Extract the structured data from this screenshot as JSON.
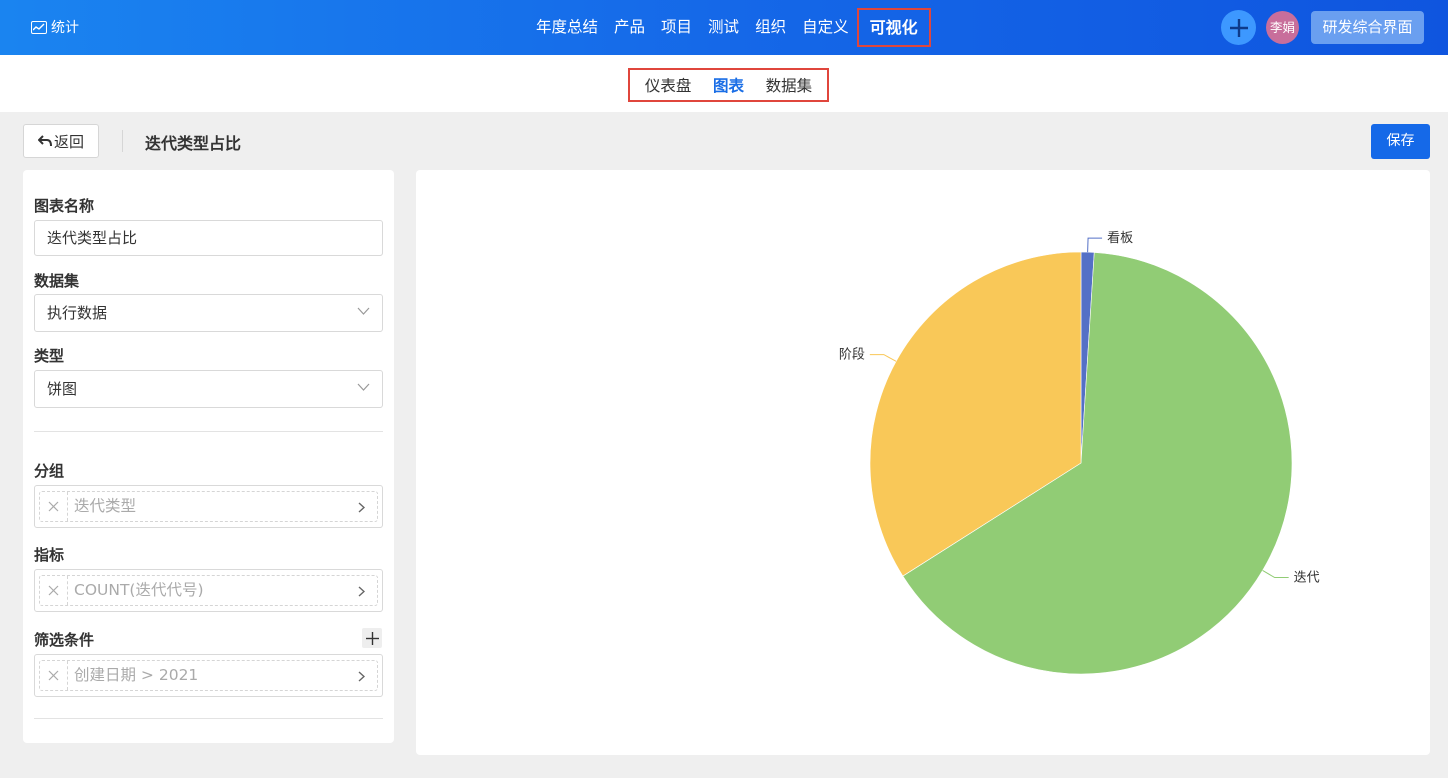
{
  "topbar": {
    "brand": "统计",
    "nav": [
      "年度总结",
      "产品",
      "项目",
      "测试",
      "组织",
      "自定义",
      "可视化"
    ],
    "active_nav": "可视化",
    "avatar": "李娟",
    "workspace": "研发综合界面"
  },
  "subnav": {
    "items": [
      "仪表盘",
      "图表",
      "数据集"
    ],
    "active": "图表"
  },
  "toolbar": {
    "back_label": "返回",
    "title": "迭代类型占比",
    "save_label": "保存"
  },
  "form": {
    "name_label": "图表名称",
    "name_value": "迭代类型占比",
    "dataset_label": "数据集",
    "dataset_value": "执行数据",
    "type_label": "类型",
    "type_value": "饼图",
    "group_label": "分组",
    "group_value": "迭代类型",
    "metric_label": "指标",
    "metric_value": "COUNT(迭代代号)",
    "filter_label": "筛选条件",
    "filter_value": "创建日期 > 2021"
  },
  "colors": {
    "primary": "#1569e8",
    "highlight_border": "#e0463c"
  },
  "chart_data": {
    "type": "pie",
    "slices": [
      {
        "label": "看板",
        "value": 1,
        "color": "#5470c6"
      },
      {
        "label": "迭代",
        "value": 65,
        "color": "#91cc75"
      },
      {
        "label": "阶段",
        "value": 34,
        "color": "#f9c858"
      }
    ]
  }
}
